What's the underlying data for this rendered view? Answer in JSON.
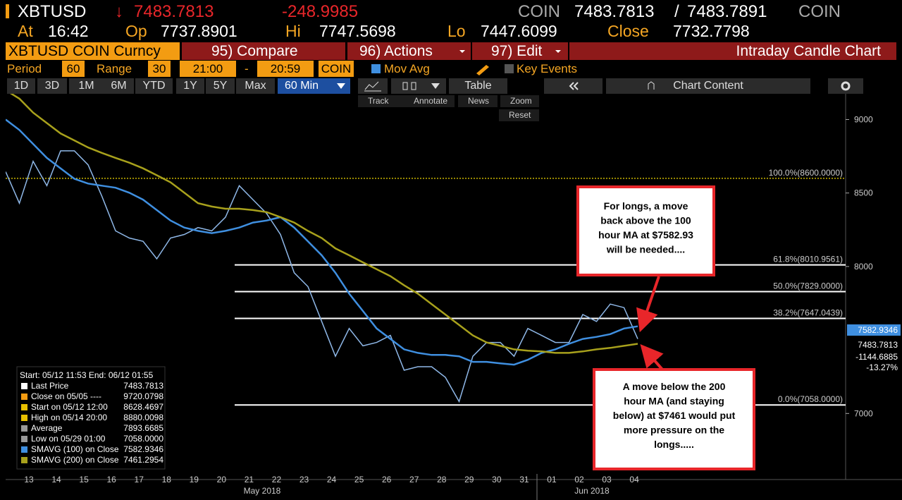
{
  "header": {
    "symbol": "XBTUSD",
    "direction": "↓",
    "last": "7483.7813",
    "change": "-248.9985",
    "src1": "COIN",
    "bid": "7483.7813",
    "sep": "/",
    "ask": "7483.7891",
    "src2": "COIN",
    "at_label": "At",
    "at": "16:42",
    "op_label": "Op",
    "op": "7737.8901",
    "hi_label": "Hi",
    "hi": "7747.5698",
    "lo_label": "Lo",
    "lo": "7447.6099",
    "close_label": "Close",
    "close": "7732.7798"
  },
  "menu": {
    "security": "XBTUSD COIN Curncy",
    "compare": "95) Compare",
    "actions": "96) Actions",
    "edit": "97) Edit",
    "chart_name": "Intraday Candle Chart"
  },
  "settings": {
    "period_label": "Period",
    "period": "60",
    "range_label": "Range",
    "range": "30",
    "start": "21:00",
    "dash": "-",
    "end": "20:59",
    "source": "COIN",
    "mov_avg": "Mov Avg",
    "key_events": "Key Events"
  },
  "toolbar": {
    "spans": [
      "1D",
      "3D",
      "1M",
      "6M",
      "YTD",
      "1Y",
      "5Y",
      "Max"
    ],
    "interval": "60 Min",
    "table": "Table",
    "chart_content": "Chart Content"
  },
  "tools": [
    "Track",
    "Annotate",
    "News",
    "Zoom",
    "Reset"
  ],
  "chart_data": {
    "type": "line",
    "ylim": [
      6560,
      9175
    ],
    "yticks": [
      7000,
      8000,
      8500,
      9000
    ],
    "x_labels": [
      "13",
      "14",
      "15",
      "16",
      "17",
      "18",
      "19",
      "20",
      "21",
      "22",
      "23",
      "24",
      "25",
      "26",
      "27",
      "28",
      "29",
      "30",
      "31",
      "01",
      "02",
      "03",
      "04"
    ],
    "month_labels": [
      "May 2018",
      "Jun 2018"
    ],
    "series": [
      {
        "name": "Last Price",
        "color": "#8fb8e8",
        "values": [
          8645,
          8431,
          8716,
          8550,
          8787,
          8787,
          8692,
          8479,
          8242,
          8194,
          8171,
          8052,
          8194,
          8218,
          8265,
          8242,
          8336,
          8550,
          8455,
          8360,
          8218,
          7957,
          7863,
          7626,
          7389,
          7578,
          7460,
          7483,
          7531,
          7294,
          7318,
          7318,
          7246,
          7081,
          7389,
          7483,
          7483,
          7389,
          7578,
          7531,
          7483,
          7483,
          7673,
          7626,
          7744,
          7720,
          7507
        ]
      },
      {
        "name": "SMAVG (100) on Close",
        "color": "#3f8fe0",
        "values": [
          9000,
          8929,
          8834,
          8739,
          8668,
          8597,
          8564,
          8550,
          8536,
          8502,
          8455,
          8384,
          8313,
          8265,
          8242,
          8227,
          8242,
          8265,
          8299,
          8313,
          8336,
          8265,
          8171,
          8076,
          7957,
          7815,
          7697,
          7578,
          7507,
          7436,
          7412,
          7398,
          7398,
          7389,
          7351,
          7351,
          7341,
          7332,
          7365,
          7412,
          7436,
          7474,
          7507,
          7521,
          7540,
          7578,
          7593
        ]
      },
      {
        "name": "SMAVG (200) on Close",
        "color": "#a8a11c",
        "values": [
          9200,
          9142,
          9047,
          8976,
          8905,
          8858,
          8810,
          8773,
          8739,
          8706,
          8668,
          8621,
          8573,
          8502,
          8431,
          8408,
          8393,
          8393,
          8384,
          8370,
          8336,
          8299,
          8242,
          8194,
          8123,
          8076,
          8028,
          7981,
          7934,
          7872,
          7815,
          7744,
          7673,
          7602,
          7531,
          7483,
          7460,
          7436,
          7427,
          7422,
          7412,
          7412,
          7422,
          7436,
          7446,
          7460,
          7474
        ]
      }
    ],
    "levels": [
      {
        "value": 8600,
        "label": "100.0%(8600.0000)",
        "color": "#c8b400"
      },
      {
        "value": 8010.9561,
        "label": "61.8%(8010.9561)",
        "color": "#ffffff"
      },
      {
        "value": 7829,
        "label": "50.0%(7829.0000)",
        "color": "#ffffff"
      },
      {
        "value": 7647.0439,
        "label": "38.2%(7647.0439)",
        "color": "#ffffff"
      },
      {
        "value": 7058,
        "label": "0.0%(7058.0000)",
        "color": "#ffffff"
      }
    ],
    "price_tags": [
      {
        "label": "7582.9346",
        "color": "#3f8fe0"
      },
      {
        "label": "7483.7813",
        "color": "#000000"
      },
      {
        "label": "-1144.6885",
        "color": "#000000"
      },
      {
        "label": "-13.27%",
        "color": "#000000"
      }
    ],
    "legend": {
      "title": "Start: 05/12 11:53 End: 06/12 01:55",
      "rows": [
        {
          "label": "Last Price",
          "value": "7483.7813",
          "color": "#ffffff"
        },
        {
          "label": "Close on 05/05 ----",
          "value": "9720.0798",
          "color": "#f39c12"
        },
        {
          "label": "Start on 05/12 12:00",
          "value": "8628.4697",
          "color": "#e8c000"
        },
        {
          "label": "High on 05/14 20:00",
          "value": "8880.0098",
          "color": "#e8c000"
        },
        {
          "label": "Average",
          "value": "7893.6685",
          "color": "#999999"
        },
        {
          "label": "Low on 05/29 01:00",
          "value": "7058.0000",
          "color": "#999999"
        },
        {
          "label": "SMAVG (100) on Close",
          "value": "7582.9346",
          "color": "#3f8fe0"
        },
        {
          "label": "SMAVG (200) on Close",
          "value": "7461.2954",
          "color": "#a8a11c"
        }
      ]
    },
    "annotations": [
      {
        "lines": [
          "For longs, a move",
          "back above the 100",
          "hour MA at $7582.93",
          "will be needed...."
        ]
      },
      {
        "lines": [
          "A move below the 200",
          "hour MA (and staying",
          "below) at $7461 would put",
          "more pressure on the",
          "longs....."
        ]
      }
    ]
  }
}
